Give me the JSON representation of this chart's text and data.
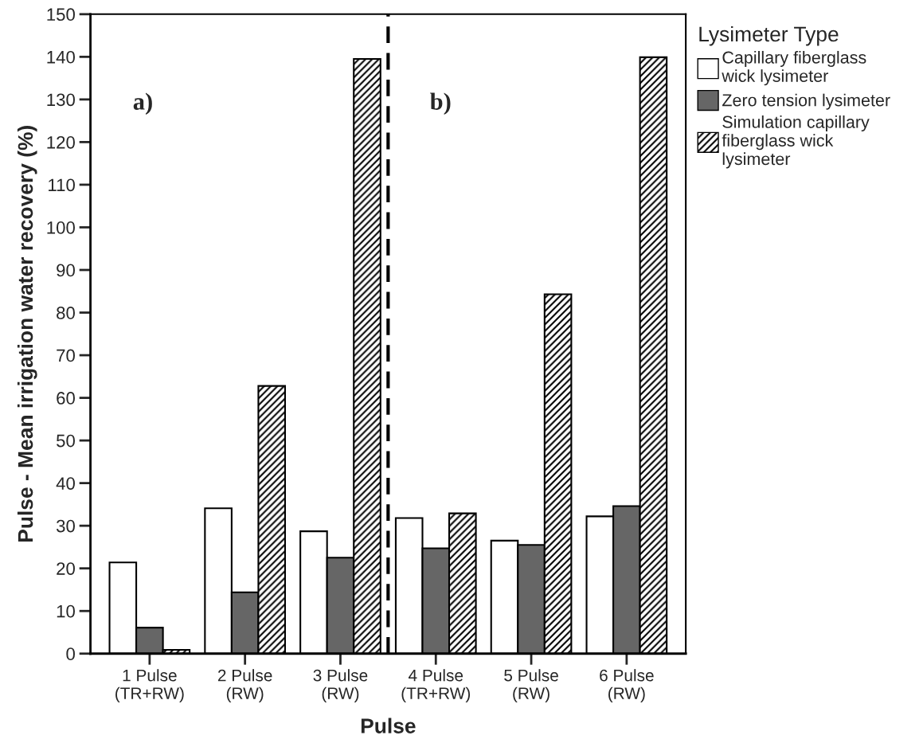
{
  "chart_data": {
    "type": "bar",
    "xlabel": "Pulse",
    "ylabel": "Pulse - Mean irrigation water recovery (%)",
    "legend_title": "Lysimeter Type",
    "categories": [
      "1 Pulse\n(TR+RW)",
      "2 Pulse\n(RW)",
      "3 Pulse\n(RW)",
      "4 Pulse\n(TR+RW)",
      "5 Pulse\n(RW)",
      "6 Pulse\n(RW)"
    ],
    "series": [
      {
        "name": "Capillary fiberglass\nwick lysimeter",
        "color": "#ffffff",
        "values": [
          21.4,
          34.1,
          28.7,
          31.8,
          26.5,
          32.2
        ]
      },
      {
        "name": "Zero tension lysimeter",
        "color": "#666666",
        "values": [
          6.1,
          14.4,
          22.5,
          24.7,
          25.5,
          34.6
        ]
      },
      {
        "name": "Simulation capillary\nfiberglass wick\nlysimeter",
        "color": "#000000",
        "values": [
          0.9,
          62.8,
          139.5,
          32.9,
          84.3,
          139.9
        ]
      }
    ],
    "ylim": [
      0,
      150
    ],
    "yticks": [
      0,
      10,
      20,
      30,
      40,
      50,
      60,
      70,
      80,
      90,
      100,
      110,
      120,
      130,
      140,
      150
    ],
    "annotations": [
      "a)",
      "b)"
    ],
    "legend": "right",
    "grid": false
  }
}
